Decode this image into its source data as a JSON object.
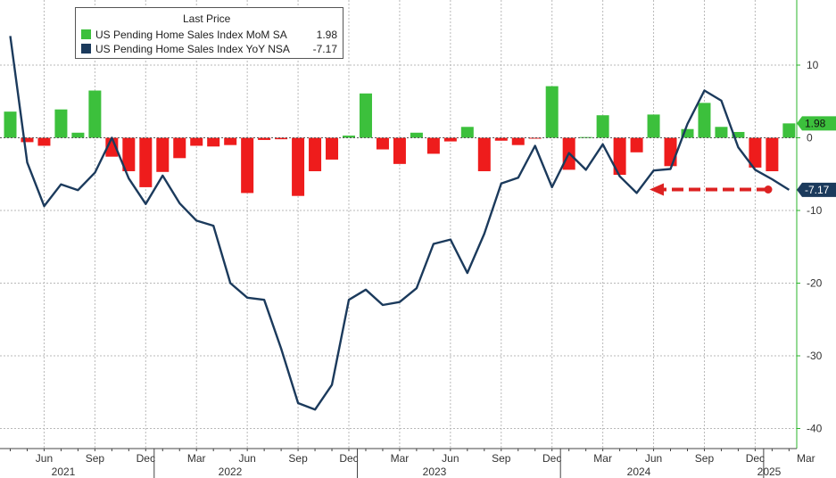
{
  "chart_data": {
    "type": "bar+line",
    "legend": {
      "title": "Last Price",
      "placement": "top-left",
      "entries": [
        {
          "name": "US Pending Home Sales Index MoM SA",
          "last": "1.98",
          "color": "#3cc03c"
        },
        {
          "name": "US Pending Home Sales Index YoY NSA",
          "last": "-7.17",
          "color": "#1b3a5c"
        }
      ]
    },
    "colors": {
      "bar_positive": "#3cc03c",
      "bar_negative": "#ee1c1c",
      "line": "#1b3a5c",
      "grid": "#b9b9b9",
      "axis": "#2bb52b",
      "arrow": "#dd2222"
    },
    "x_months": [
      "2021-04",
      "2021-05",
      "2021-06",
      "2021-07",
      "2021-08",
      "2021-09",
      "2021-10",
      "2021-11",
      "2021-12",
      "2022-01",
      "2022-02",
      "2022-03",
      "2022-04",
      "2022-05",
      "2022-06",
      "2022-07",
      "2022-08",
      "2022-09",
      "2022-10",
      "2022-11",
      "2022-12",
      "2023-01",
      "2023-02",
      "2023-03",
      "2023-04",
      "2023-05",
      "2023-06",
      "2023-07",
      "2023-08",
      "2023-09",
      "2023-10",
      "2023-11",
      "2023-12",
      "2024-01",
      "2024-02",
      "2024-03",
      "2024-04",
      "2024-05",
      "2024-06",
      "2024-07",
      "2024-08",
      "2024-09",
      "2024-10",
      "2024-11",
      "2024-12",
      "2025-01",
      "2025-02"
    ],
    "series": [
      {
        "name": "US Pending Home Sales Index MoM SA",
        "type": "bar",
        "values": [
          3.6,
          -0.6,
          -1.1,
          3.9,
          0.7,
          6.5,
          -2.6,
          -4.6,
          -6.8,
          -4.7,
          -2.8,
          -1.1,
          -1.2,
          -1.0,
          -7.6,
          -0.3,
          -0.2,
          -8.0,
          -4.6,
          -3.0,
          0.3,
          6.1,
          -1.6,
          -3.6,
          0.7,
          -2.2,
          -0.5,
          1.5,
          -4.6,
          -0.4,
          -1.0,
          -0.1,
          7.1,
          -4.4,
          0.1,
          3.1,
          -5.1,
          -2.0,
          3.2,
          -3.9,
          1.2,
          4.8,
          1.5,
          0.8,
          -4.1,
          -4.6,
          1.98
        ]
      },
      {
        "name": "US Pending Home Sales Index YoY NSA",
        "type": "line",
        "values": [
          14.0,
          -3.4,
          -9.4,
          -6.4,
          -7.2,
          -4.8,
          0.0,
          -5.6,
          -9.1,
          -5.2,
          -9.0,
          -11.4,
          -12.1,
          -20.0,
          -22.0,
          -22.3,
          -29.0,
          -36.5,
          -37.4,
          -34.0,
          -22.3,
          -20.9,
          -23.0,
          -22.6,
          -20.7,
          -14.6,
          -14.0,
          -18.6,
          -13.2,
          -6.3,
          -5.5,
          -1.1,
          -6.8,
          -2.1,
          -4.4,
          -0.9,
          -5.3,
          -7.6,
          -4.5,
          -4.3,
          1.9,
          6.5,
          5.1,
          -1.3,
          -4.4,
          -5.7,
          -7.17
        ]
      }
    ],
    "y_axis": {
      "position": "right",
      "range": [
        -42,
        19
      ],
      "ticks": [
        10,
        0,
        -10,
        -20,
        -30,
        -40
      ]
    },
    "x_axis": {
      "month_labels": [
        {
          "label": "Jun",
          "month": "2021-06"
        },
        {
          "label": "Sep",
          "month": "2021-09"
        },
        {
          "label": "Dec",
          "month": "2021-12"
        },
        {
          "label": "Mar",
          "month": "2022-03"
        },
        {
          "label": "Jun",
          "month": "2022-06"
        },
        {
          "label": "Sep",
          "month": "2022-09"
        },
        {
          "label": "Dec",
          "month": "2022-12"
        },
        {
          "label": "Mar",
          "month": "2023-03"
        },
        {
          "label": "Jun",
          "month": "2023-06"
        },
        {
          "label": "Sep",
          "month": "2023-09"
        },
        {
          "label": "Dec",
          "month": "2023-12"
        },
        {
          "label": "Mar",
          "month": "2024-03"
        },
        {
          "label": "Jun",
          "month": "2024-06"
        },
        {
          "label": "Sep",
          "month": "2024-09"
        },
        {
          "label": "Dec",
          "month": "2024-12"
        },
        {
          "label": "Mar",
          "month": "2025-03"
        }
      ],
      "year_labels": [
        "2021",
        "2022",
        "2023",
        "2024",
        "2025"
      ]
    },
    "last_value_tags": [
      "1.98",
      "-7.17"
    ],
    "grid": true
  }
}
